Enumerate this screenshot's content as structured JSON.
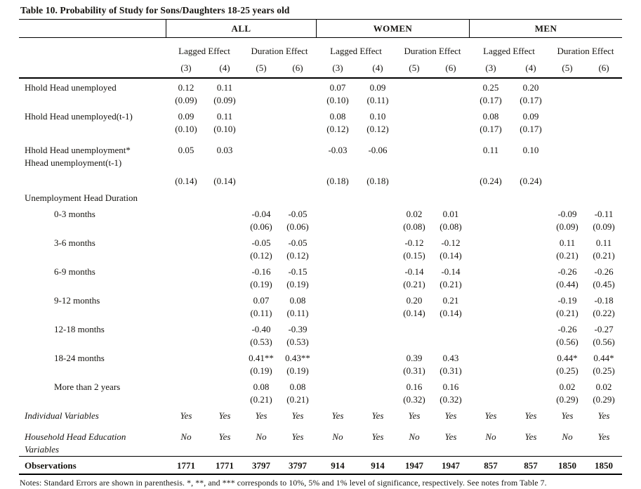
{
  "title": "Table 10. Probability of Study for Sons/Daughters 18-25 years old",
  "notes": "Notes: Standard Errors are shown in parenthesis. *, **, and *** corresponds to 10%, 5% and 1% level of significance, respectively. See notes from Table 7.",
  "table": {
    "group_headers": [
      "ALL",
      "WOMEN",
      "MEN"
    ],
    "effect_headers": [
      "Lagged Effect",
      "Duration Effect"
    ],
    "column_numbers": [
      "(3)",
      "(4)",
      "(5)",
      "(6)"
    ],
    "rows": [
      {
        "type": "var",
        "label": "Hhold Head unemployed",
        "indent": 0,
        "gap": "none",
        "coef": [
          "0.12",
          "0.11",
          "",
          "",
          "0.07",
          "0.09",
          "",
          "",
          "0.25",
          "0.20",
          "",
          ""
        ],
        "se": [
          "(0.09)",
          "(0.09)",
          "",
          "",
          "(0.10)",
          "(0.11)",
          "",
          "",
          "(0.17)",
          "(0.17)",
          "",
          ""
        ]
      },
      {
        "type": "var",
        "label": "Hhold Head unemployed(t-1)",
        "indent": 0,
        "gap": "sm",
        "coef": [
          "0.09",
          "0.11",
          "",
          "",
          "0.08",
          "0.10",
          "",
          "",
          "0.08",
          "0.09",
          "",
          ""
        ],
        "se": [
          "(0.10)",
          "(0.10)",
          "",
          "",
          "(0.12)",
          "(0.12)",
          "",
          "",
          "(0.17)",
          "(0.17)",
          "",
          ""
        ]
      },
      {
        "type": "var",
        "label": "Hhold Head unemployment*",
        "label2": "Hhead unemployment(t-1)",
        "indent": 0,
        "gap": "lg",
        "se_gap": true,
        "coef": [
          "0.05",
          "0.03",
          "",
          "",
          "-0.03",
          "-0.06",
          "",
          "",
          "0.11",
          "0.10",
          "",
          ""
        ],
        "se": [
          "(0.14)",
          "(0.14)",
          "",
          "",
          "(0.18)",
          "(0.18)",
          "",
          "",
          "(0.24)",
          "(0.24)",
          "",
          ""
        ]
      },
      {
        "type": "section",
        "label": "Unemployment Head Duration",
        "gap": "sm"
      },
      {
        "type": "var",
        "label": "0-3 months",
        "indent": 1,
        "gap": "sm",
        "coef": [
          "",
          "",
          "-0.04",
          "-0.05",
          "",
          "",
          "0.02",
          "0.01",
          "",
          "",
          "-0.09",
          "-0.11"
        ],
        "se": [
          "",
          "",
          "(0.06)",
          "(0.06)",
          "",
          "",
          "(0.08)",
          "(0.08)",
          "",
          "",
          "(0.09)",
          "(0.09)"
        ]
      },
      {
        "type": "var",
        "label": "3-6 months",
        "indent": 1,
        "gap": "sm",
        "coef": [
          "",
          "",
          "-0.05",
          "-0.05",
          "",
          "",
          "-0.12",
          "-0.12",
          "",
          "",
          "0.11",
          "0.11"
        ],
        "se": [
          "",
          "",
          "(0.12)",
          "(0.12)",
          "",
          "",
          "(0.15)",
          "(0.14)",
          "",
          "",
          "(0.21)",
          "(0.21)"
        ]
      },
      {
        "type": "var",
        "label": "6-9 months",
        "indent": 1,
        "gap": "sm",
        "coef": [
          "",
          "",
          "-0.16",
          "-0.15",
          "",
          "",
          "-0.14",
          "-0.14",
          "",
          "",
          "-0.26",
          "-0.26"
        ],
        "se": [
          "",
          "",
          "(0.19)",
          "(0.19)",
          "",
          "",
          "(0.21)",
          "(0.21)",
          "",
          "",
          "(0.44)",
          "(0.45)"
        ]
      },
      {
        "type": "var",
        "label": "9-12 months",
        "indent": 1,
        "gap": "sm",
        "coef": [
          "",
          "",
          "0.07",
          "0.08",
          "",
          "",
          "0.20",
          "0.21",
          "",
          "",
          "-0.19",
          "-0.18"
        ],
        "se": [
          "",
          "",
          "(0.11)",
          "(0.11)",
          "",
          "",
          "(0.14)",
          "(0.14)",
          "",
          "",
          "(0.21)",
          "(0.22)"
        ]
      },
      {
        "type": "var",
        "label": "12-18 months",
        "indent": 1,
        "gap": "sm",
        "coef": [
          "",
          "",
          "-0.40",
          "-0.39",
          "",
          "",
          "",
          "",
          "",
          "",
          "-0.26",
          "-0.27"
        ],
        "se": [
          "",
          "",
          "(0.53)",
          "(0.53)",
          "",
          "",
          "",
          "",
          "",
          "",
          "(0.56)",
          "(0.56)"
        ]
      },
      {
        "type": "var",
        "label": "18-24 months",
        "indent": 1,
        "gap": "sm",
        "coef": [
          "",
          "",
          "0.41**",
          "0.43**",
          "",
          "",
          "0.39",
          "0.43",
          "",
          "",
          "0.44*",
          "0.44*"
        ],
        "se": [
          "",
          "",
          "(0.19)",
          "(0.19)",
          "",
          "",
          "(0.31)",
          "(0.31)",
          "",
          "",
          "(0.25)",
          "(0.25)"
        ]
      },
      {
        "type": "var",
        "label": "More than 2 years",
        "indent": 1,
        "gap": "sm",
        "coef": [
          "",
          "",
          "0.08",
          "0.08",
          "",
          "",
          "0.16",
          "0.16",
          "",
          "",
          "0.02",
          "0.02"
        ],
        "se": [
          "",
          "",
          "(0.21)",
          "(0.21)",
          "",
          "",
          "(0.32)",
          "(0.32)",
          "",
          "",
          "(0.29)",
          "(0.29)"
        ]
      },
      {
        "type": "switch",
        "label": "Individual Variables",
        "gap": "sm",
        "values": [
          "Yes",
          "Yes",
          "Yes",
          "Yes",
          "Yes",
          "Yes",
          "Yes",
          "Yes",
          "Yes",
          "Yes",
          "Yes",
          "Yes"
        ]
      },
      {
        "type": "switch",
        "label": "Household Head Education",
        "label2": "Variables",
        "gap": "lg",
        "values": [
          "No",
          "Yes",
          "No",
          "Yes",
          "No",
          "Yes",
          "No",
          "Yes",
          "No",
          "Yes",
          "No",
          "Yes"
        ]
      },
      {
        "type": "obs",
        "label": "Observations",
        "values": [
          "1771",
          "1771",
          "3797",
          "3797",
          "914",
          "914",
          "1947",
          "1947",
          "857",
          "857",
          "1850",
          "1850"
        ]
      }
    ]
  }
}
